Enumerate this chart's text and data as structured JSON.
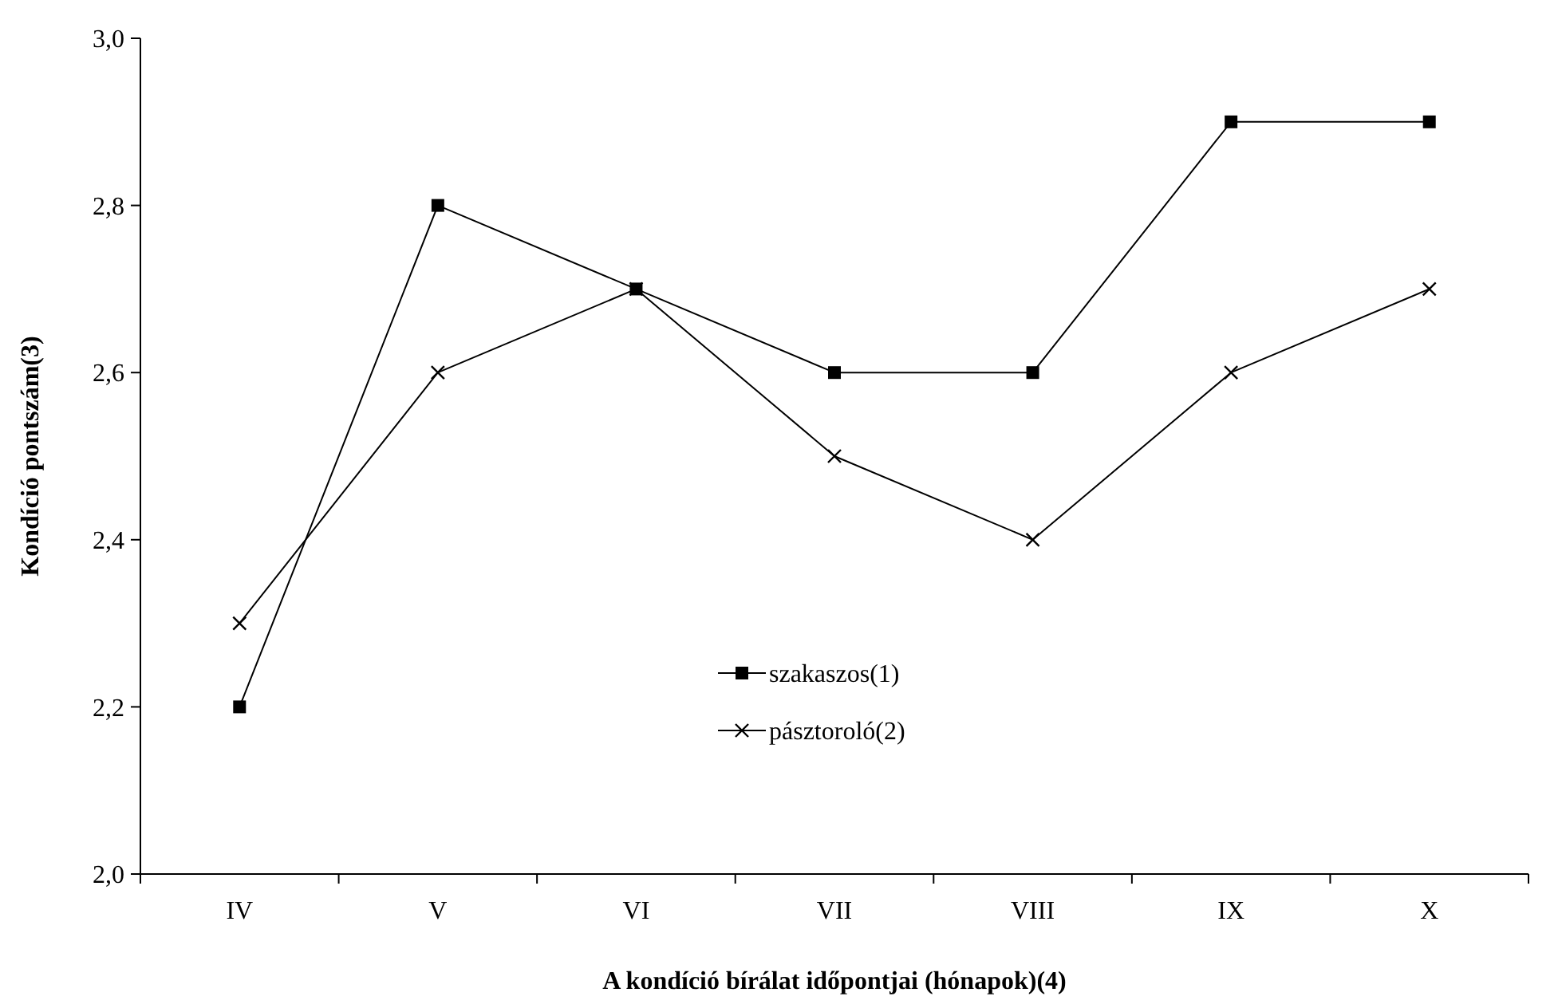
{
  "chart_data": {
    "type": "line",
    "xlabel": "A kondíció bírálat időpontjai (hónapok)(4)",
    "ylabel": "Kondíció pontszám(3)",
    "categories": [
      "IV",
      "V",
      "VI",
      "VII",
      "VIII",
      "IX",
      "X"
    ],
    "series": [
      {
        "name": "szakaszos(1)",
        "color": "#000000",
        "marker": "square",
        "values": [
          2.2,
          2.8,
          2.7,
          2.6,
          2.6,
          2.9,
          2.9
        ]
      },
      {
        "name": "pásztoroló(2)",
        "color": "#000000",
        "marker": "cross",
        "values": [
          2.3,
          2.6,
          2.7,
          2.5,
          2.4,
          2.6,
          2.7
        ]
      }
    ],
    "ylim": [
      2,
      3
    ],
    "yticks": [
      {
        "value": 2,
        "label": "2,0"
      },
      {
        "value": 2.2,
        "label": "2,2"
      },
      {
        "value": 2.4,
        "label": "2,4"
      },
      {
        "value": 2.6,
        "label": "2,6"
      },
      {
        "value": 2.8,
        "label": "2,8"
      },
      {
        "value": 3,
        "label": "3,0"
      }
    ],
    "grid": false,
    "legend": "bottom",
    "line_style": "solid"
  }
}
